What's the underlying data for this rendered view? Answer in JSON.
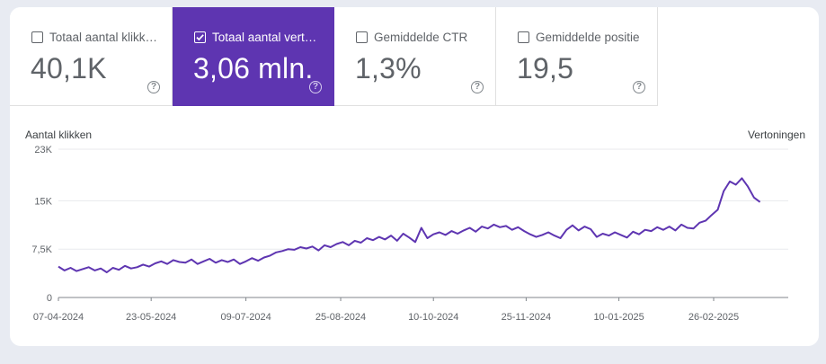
{
  "metrics": [
    {
      "label": "Totaal aantal klikk…",
      "value": "40,1K",
      "checked": false
    },
    {
      "label": "Totaal aantal vert…",
      "value": "3,06 mln.",
      "checked": true
    },
    {
      "label": "Gemiddelde CTR",
      "value": "1,3%",
      "checked": false
    },
    {
      "label": "Gemiddelde positie",
      "value": "19,5",
      "checked": false
    }
  ],
  "help_glyph": "?",
  "colors": {
    "accent": "#5e35b1",
    "line": "#5e35b1",
    "grid": "#e8eaed"
  },
  "chart_data": {
    "type": "line",
    "ylabel": "Aantal klikken",
    "y2label": "Vertoningen",
    "yticks": [
      "0",
      "7,5K",
      "15K",
      "23K"
    ],
    "yticks_values": [
      0,
      7500,
      15000,
      23000
    ],
    "ylim": [
      0,
      23000
    ],
    "xticks": [
      "07-04-2024",
      "23-05-2024",
      "09-07-2024",
      "25-08-2024",
      "10-10-2024",
      "25-11-2024",
      "10-01-2025",
      "26-02-2025"
    ],
    "x_start": "2024-04-07",
    "x_end": "2025-04-04",
    "series": [
      {
        "name": "Vertoningen",
        "step_days": 3,
        "values": [
          4800,
          4200,
          4600,
          4100,
          4400,
          4700,
          4200,
          4500,
          3900,
          4600,
          4300,
          4900,
          4500,
          4700,
          5100,
          4800,
          5300,
          5600,
          5200,
          5800,
          5500,
          5400,
          5900,
          5200,
          5600,
          6000,
          5400,
          5800,
          5500,
          5900,
          5200,
          5600,
          6100,
          5700,
          6200,
          6500,
          7000,
          7200,
          7500,
          7400,
          7800,
          7600,
          7900,
          7300,
          8100,
          7800,
          8300,
          8600,
          8100,
          8800,
          8500,
          9200,
          8900,
          9400,
          9000,
          9600,
          8800,
          9900,
          9300,
          8600,
          10800,
          9200,
          9800,
          10100,
          9700,
          10300,
          9900,
          10400,
          10800,
          10200,
          11000,
          10700,
          11300,
          10900,
          11100,
          10500,
          10900,
          10300,
          9800,
          9400,
          9700,
          10100,
          9600,
          9200,
          10500,
          11200,
          10400,
          11000,
          10600,
          9400,
          9900,
          9600,
          10100,
          9700,
          9300,
          10200,
          9800,
          10500,
          10300,
          10900,
          10500,
          11000,
          10400,
          11300,
          10800,
          10700,
          11600,
          11900,
          12800,
          13600,
          16500,
          18000,
          17500,
          18500,
          17200,
          15500,
          14800
        ]
      }
    ]
  }
}
